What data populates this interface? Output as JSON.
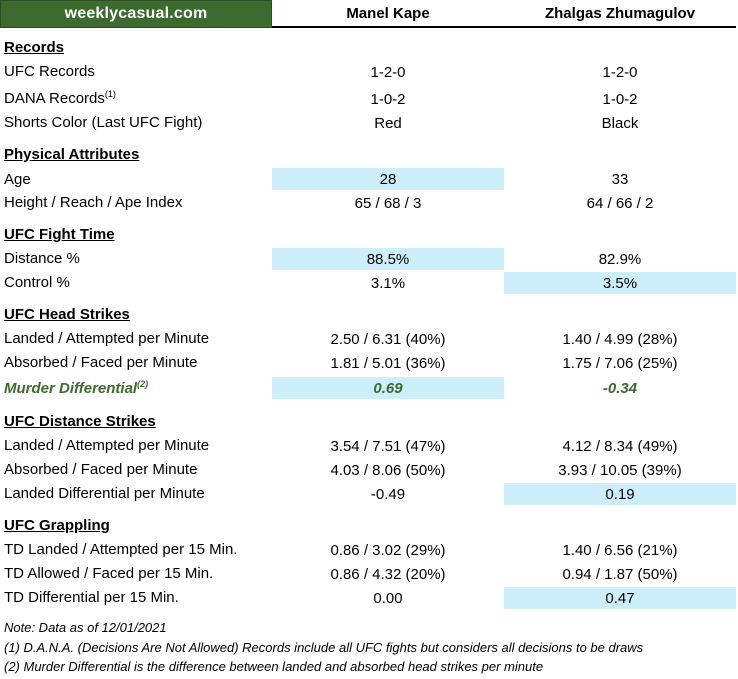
{
  "brand": "weeklycasual.com",
  "fighters": [
    "Manel Kape",
    "Zhalgas Zhumagulov"
  ],
  "sections": {
    "records": "Records",
    "physical": "Physical Attributes",
    "fight_time": "UFC Fight Time",
    "head": "UFC Head Strikes",
    "distance": "UFC Distance Strikes",
    "grappling": "UFC Grappling"
  },
  "rows": {
    "ufc_records": {
      "label": "UFC Records",
      "v1": "1-2-0",
      "v2": "1-2-0"
    },
    "dana_records": {
      "label": "DANA Records",
      "sup": "(1)",
      "v1": "1-0-2",
      "v2": "1-0-2"
    },
    "shorts": {
      "label": "Shorts Color (Last UFC Fight)",
      "v1": "Red",
      "v2": "Black"
    },
    "age": {
      "label": "Age",
      "v1": "28",
      "v2": "33"
    },
    "height": {
      "label": "Height / Reach / Ape Index",
      "v1": "65 / 68 / 3",
      "v2": "64 / 66 / 2"
    },
    "distance_pct": {
      "label": "Distance %",
      "v1": "88.5%",
      "v2": "82.9%"
    },
    "control_pct": {
      "label": "Control %",
      "v1": "3.1%",
      "v2": "3.5%"
    },
    "head_landed": {
      "label": "Landed / Attempted per Minute",
      "v1": "2.50 / 6.31 (40%)",
      "v2": "1.40 / 4.99 (28%)"
    },
    "head_absorbed": {
      "label": "Absorbed / Faced per Minute",
      "v1": "1.81 / 5.01 (36%)",
      "v2": "1.75 / 7.06 (25%)"
    },
    "murder": {
      "label": "Murder Differential",
      "sup": "(2)",
      "v1": "0.69",
      "v2": "-0.34"
    },
    "dist_landed": {
      "label": "Landed / Attempted per Minute",
      "v1": "3.54 / 7.51 (47%)",
      "v2": "4.12 / 8.34 (49%)"
    },
    "dist_absorbed": {
      "label": "Absorbed / Faced per Minute",
      "v1": "4.03 / 8.06 (50%)",
      "v2": "3.93 / 10.05 (39%)"
    },
    "dist_diff": {
      "label": "Landed Differential per Minute",
      "v1": "-0.49",
      "v2": "0.19"
    },
    "td_landed": {
      "label": "TD Landed / Attempted per 15 Min.",
      "v1": "0.86 / 3.02 (29%)",
      "v2": "1.40 / 6.56 (21%)"
    },
    "td_allowed": {
      "label": "TD Allowed / Faced per 15 Min.",
      "v1": "0.86 / 4.32 (20%)",
      "v2": "0.94 / 1.87 (50%)"
    },
    "td_diff": {
      "label": "TD Differential per 15 Min.",
      "v1": "0.00",
      "v2": "0.47"
    }
  },
  "notes": [
    "Note: Data as of 12/01/2021",
    "(1) D.A.N.A. (Decisions Are Not Allowed) Records include all UFC fights but considers all decisions to be draws",
    "(2) Murder Differential is the difference between landed and absorbed head strikes per minute"
  ],
  "colors": {
    "brand_green": "#3d6b2f",
    "highlight": "#cdeefb"
  }
}
